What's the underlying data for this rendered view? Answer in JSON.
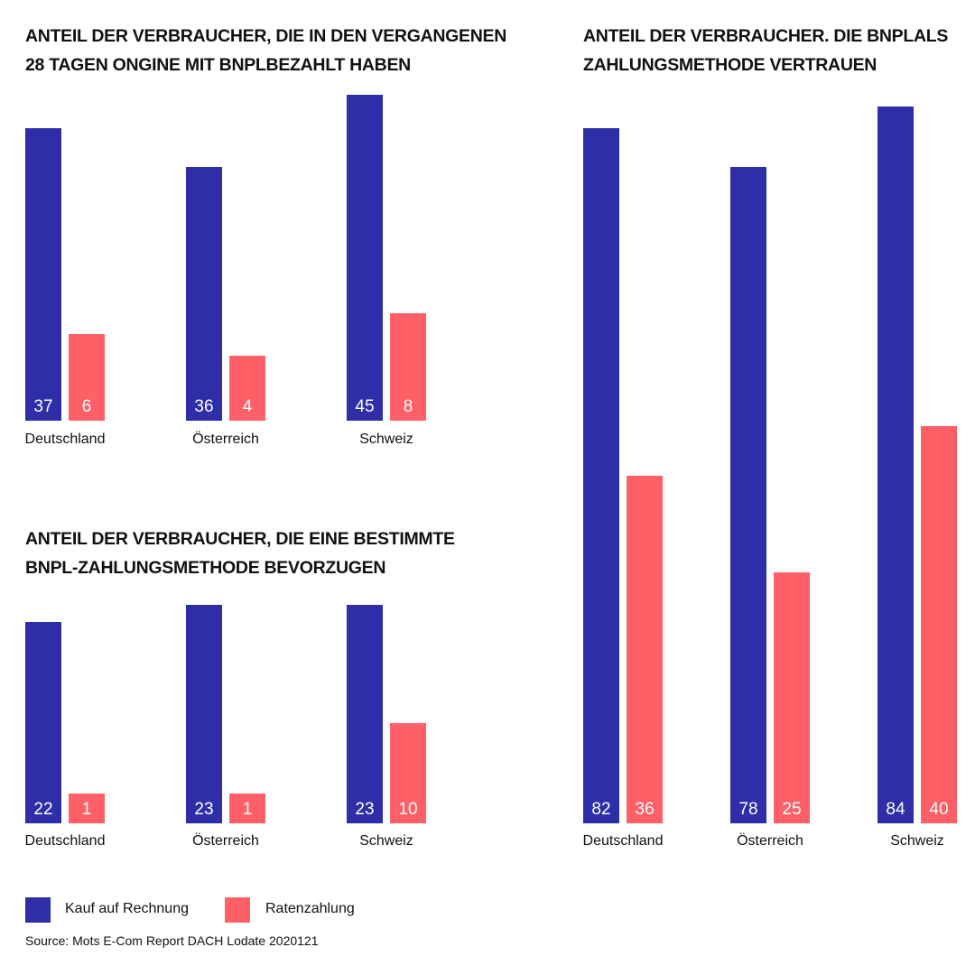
{
  "colors": {
    "kauf": "#2e2ea8",
    "raten": "#ff5f67"
  },
  "legend": [
    {
      "label": "Kauf auf Rechnung",
      "color": "#2e2ea8"
    },
    {
      "label": "Ratenzahlung",
      "color": "#ff5f67"
    }
  ],
  "source": "Source: Mots E-Com Report DACH Lodate 2020121",
  "chart_data": [
    {
      "type": "bar",
      "title_lines": [
        "ANTEIL DER VERBRAUCHER, DIE IN DEN VERGANGENEN",
        "28 TAGEN ONGINE MIT BNPLBEZAHLT HABEN"
      ],
      "categories": [
        "Deutschland",
        "Österreich",
        "Schweiz"
      ],
      "series": [
        {
          "name": "Kauf auf Rechnung",
          "values": [
            37,
            36,
            45
          ]
        },
        {
          "name": "Ratenzahlung",
          "values": [
            6,
            4,
            8
          ]
        }
      ]
    },
    {
      "type": "bar",
      "title_lines": [
        "ANTEIL DER VERBRAUCHER, DIE EINE BESTIMMTE",
        "BNPL-ZAHLUNGSMETHODE BEVORZUGEN"
      ],
      "categories": [
        "Deutschland",
        "Österreich",
        "Schweiz"
      ],
      "series": [
        {
          "name": "Kauf auf Rechnung",
          "values": [
            22,
            23,
            23
          ]
        },
        {
          "name": "Ratenzahlung",
          "values": [
            1,
            1,
            10
          ]
        }
      ]
    },
    {
      "type": "bar",
      "title_lines": [
        "ANTEIL DER VERBRAUCHER. DIE BNPLALS",
        "ZAHLUNGSMETHODE VERTRAUEN"
      ],
      "categories": [
        "Deutschland",
        "Österreich",
        "Schweiz"
      ],
      "series": [
        {
          "name": "Kauf auf Rechnung",
          "values": [
            82,
            78,
            84
          ]
        },
        {
          "name": "Ratenzahlung",
          "values": [
            36,
            25,
            40
          ]
        }
      ]
    }
  ]
}
